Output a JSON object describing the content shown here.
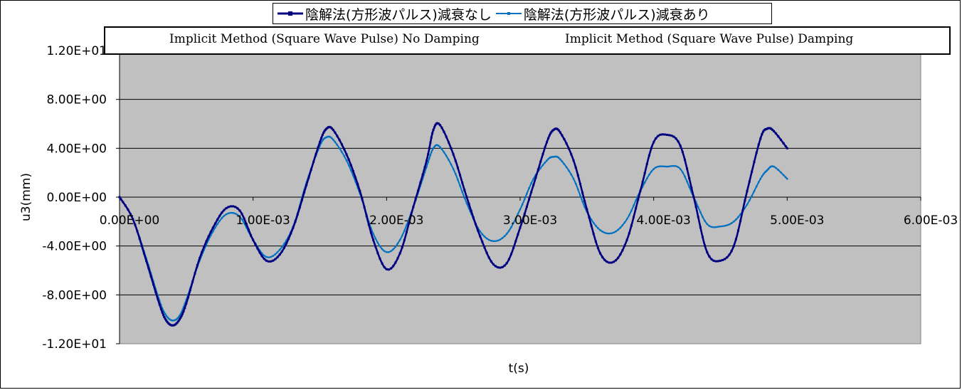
{
  "chart_data": {
    "type": "line",
    "title": "",
    "xlabel": "t(s)",
    "ylabel": "u3(mm)",
    "xlim": [
      0,
      0.006
    ],
    "ylim": [
      -12,
      12
    ],
    "x_ticks": [
      0,
      0.001,
      0.002,
      0.003,
      0.004,
      0.005,
      0.006
    ],
    "x_tick_labels": [
      "0.00E+00",
      "1.00E-03",
      "2.00E-03",
      "3.00E-03",
      "4.00E-03",
      "5.00E-03",
      "6.00E-03"
    ],
    "y_ticks": [
      12,
      8,
      4,
      0,
      -4,
      -8,
      -12
    ],
    "y_tick_labels": [
      "1.20E+01",
      "8.00E+00",
      "4.00E+00",
      "0.00E+00",
      "-4.00E+00",
      "-8.00E+00",
      "-1.20E+01"
    ],
    "grid": "horizontal",
    "plot_background": "#c0c0c0",
    "legend_position": "top",
    "translations": [
      "Implicit Method (Square Wave Pulse) No Damping",
      "Implicit Method (Square Wave Pulse) Damping"
    ],
    "series": [
      {
        "name": "陰解法(方形波パルス)減衰なし",
        "color": "#000080",
        "x": [
          0,
          0.0001,
          0.0002,
          0.0003,
          0.00035,
          0.0004,
          0.00045,
          0.0005,
          0.0006,
          0.0007,
          0.0008,
          0.0009,
          0.001,
          0.0011,
          0.0012,
          0.0013,
          0.0014,
          0.0015,
          0.00155,
          0.0016,
          0.0017,
          0.0018,
          0.0019,
          0.002,
          0.0021,
          0.0022,
          0.0023,
          0.00235,
          0.0024,
          0.0025,
          0.0026,
          0.0027,
          0.0028,
          0.0029,
          0.003,
          0.0031,
          0.0032,
          0.00325,
          0.0033,
          0.0034,
          0.0035,
          0.0036,
          0.0037,
          0.0038,
          0.0039,
          0.004,
          0.0041,
          0.0042,
          0.0043,
          0.0044,
          0.0045,
          0.0046,
          0.0047,
          0.0048,
          0.00485,
          0.0049,
          0.005
        ],
        "y": [
          0,
          -1.8,
          -5.2,
          -8.8,
          -10.1,
          -10.5,
          -10.0,
          -8.7,
          -5.0,
          -2.5,
          -0.9,
          -1.1,
          -3.5,
          -5.2,
          -4.7,
          -2.5,
          1.0,
          4.5,
          5.6,
          5.5,
          3.5,
          0.5,
          -3.5,
          -5.9,
          -4.6,
          -0.8,
          3.0,
          5.5,
          5.9,
          3.5,
          0.0,
          -3.2,
          -5.5,
          -5.4,
          -2.5,
          1.0,
          4.5,
          5.5,
          5.3,
          3.0,
          -1.0,
          -4.6,
          -5.3,
          -3.5,
          0.5,
          4.5,
          5.1,
          4.2,
          0.0,
          -4.5,
          -5.2,
          -4.0,
          0.5,
          4.8,
          5.6,
          5.4,
          4.0
        ]
      },
      {
        "name": "陰解法(方形波パルス)減衰あり",
        "color": "#0070c0",
        "x": [
          0,
          0.0001,
          0.0002,
          0.0003,
          0.00035,
          0.0004,
          0.00045,
          0.0005,
          0.0006,
          0.0007,
          0.0008,
          0.0009,
          0.001,
          0.0011,
          0.0012,
          0.0013,
          0.0014,
          0.0015,
          0.00155,
          0.0016,
          0.0017,
          0.0018,
          0.0019,
          0.002,
          0.0021,
          0.0022,
          0.0023,
          0.00235,
          0.0024,
          0.0025,
          0.0026,
          0.0027,
          0.0028,
          0.0029,
          0.003,
          0.0031,
          0.0032,
          0.00325,
          0.0033,
          0.0034,
          0.0035,
          0.0036,
          0.0037,
          0.0038,
          0.0039,
          0.004,
          0.0041,
          0.0042,
          0.0043,
          0.0044,
          0.0045,
          0.0046,
          0.0047,
          0.0048,
          0.00485,
          0.0049,
          0.005
        ],
        "y": [
          0,
          -1.8,
          -5.0,
          -8.5,
          -9.7,
          -10.1,
          -9.7,
          -8.4,
          -5.2,
          -2.8,
          -1.4,
          -1.6,
          -3.5,
          -4.9,
          -4.3,
          -2.4,
          1.2,
          4.2,
          4.9,
          4.7,
          3.0,
          0.3,
          -3.0,
          -4.5,
          -3.5,
          -0.8,
          2.5,
          4.0,
          4.1,
          2.3,
          -0.5,
          -2.8,
          -3.6,
          -3.0,
          -1.0,
          1.5,
          3.0,
          3.3,
          3.1,
          1.5,
          -1.2,
          -2.7,
          -2.9,
          -1.8,
          0.5,
          2.3,
          2.5,
          2.3,
          0.0,
          -2.2,
          -2.4,
          -2.0,
          -0.6,
          1.5,
          2.2,
          2.5,
          1.5
        ]
      }
    ]
  }
}
